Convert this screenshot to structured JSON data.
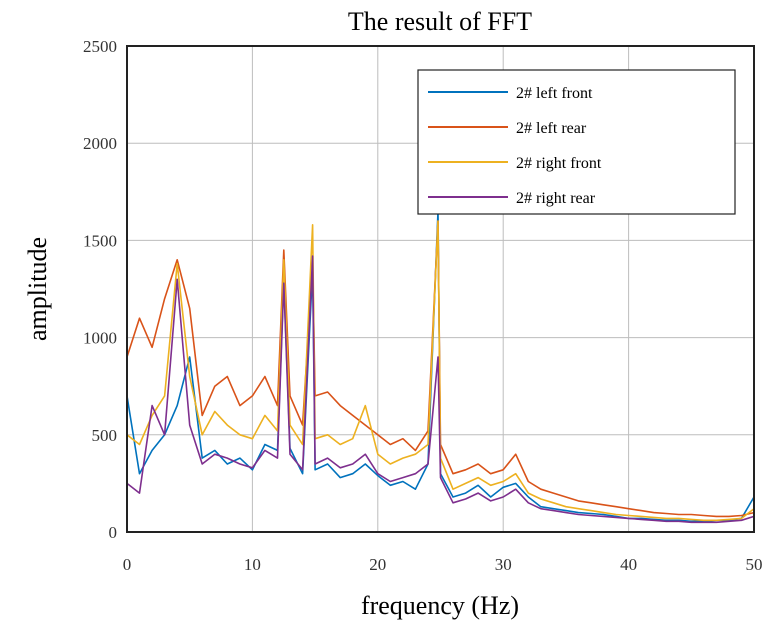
{
  "chart_data": {
    "type": "line",
    "title": "The result of FFT",
    "xlabel": "frequency (Hz)",
    "ylabel": "amplitude",
    "xlim": [
      0,
      50
    ],
    "ylim": [
      0,
      2500
    ],
    "xticks": [
      0,
      10,
      20,
      30,
      40,
      50
    ],
    "yticks": [
      0,
      500,
      1000,
      1500,
      2000,
      2500
    ],
    "grid": true,
    "legend_position": "top-right",
    "series": [
      {
        "name": "2# left front",
        "color": "#0072BD",
        "x": [
          0,
          1,
          2,
          3,
          4,
          5,
          6,
          7,
          8,
          9,
          10,
          11,
          12,
          12.5,
          13,
          14,
          14.8,
          15,
          16,
          17,
          18,
          19,
          20,
          21,
          22,
          23,
          24,
          24.8,
          25,
          26,
          27,
          28,
          29,
          30,
          31,
          32,
          33,
          34,
          35,
          36,
          37,
          38,
          39,
          40,
          41,
          42,
          43,
          44,
          45,
          46,
          47,
          48,
          49,
          50
        ],
        "values": [
          700,
          300,
          420,
          500,
          650,
          900,
          380,
          420,
          350,
          380,
          320,
          450,
          420,
          1300,
          430,
          300,
          1350,
          320,
          350,
          280,
          300,
          350,
          290,
          240,
          260,
          220,
          350,
          1650,
          300,
          180,
          200,
          240,
          180,
          230,
          250,
          180,
          130,
          120,
          110,
          100,
          95,
          90,
          80,
          70,
          70,
          65,
          60,
          60,
          55,
          55,
          60,
          60,
          70,
          180
        ]
      },
      {
        "name": "2# left rear",
        "color": "#D95319",
        "x": [
          0,
          1,
          2,
          3,
          4,
          5,
          6,
          7,
          8,
          9,
          10,
          11,
          12,
          12.5,
          13,
          14,
          14.8,
          15,
          16,
          17,
          18,
          19,
          20,
          21,
          22,
          23,
          24,
          24.8,
          25,
          26,
          27,
          28,
          29,
          30,
          31,
          32,
          33,
          34,
          35,
          36,
          37,
          38,
          39,
          40,
          41,
          42,
          43,
          44,
          45,
          46,
          47,
          48,
          49,
          50
        ],
        "values": [
          900,
          1100,
          950,
          1200,
          1400,
          1150,
          600,
          750,
          800,
          650,
          700,
          800,
          650,
          1450,
          700,
          550,
          1380,
          700,
          720,
          650,
          600,
          550,
          500,
          450,
          480,
          420,
          520,
          1600,
          450,
          300,
          320,
          350,
          300,
          320,
          400,
          260,
          220,
          200,
          180,
          160,
          150,
          140,
          130,
          120,
          110,
          100,
          95,
          90,
          90,
          85,
          80,
          80,
          85,
          100
        ]
      },
      {
        "name": "2# right front",
        "color": "#EDB120",
        "x": [
          0,
          1,
          2,
          3,
          4,
          5,
          6,
          7,
          8,
          9,
          10,
          11,
          12,
          12.5,
          13,
          14,
          14.8,
          15,
          16,
          17,
          18,
          19,
          20,
          21,
          22,
          23,
          24,
          24.8,
          25,
          26,
          27,
          28,
          29,
          30,
          31,
          32,
          33,
          34,
          35,
          36,
          37,
          38,
          39,
          40,
          41,
          42,
          43,
          44,
          45,
          46,
          47,
          48,
          49,
          50
        ],
        "values": [
          500,
          450,
          600,
          700,
          1380,
          800,
          500,
          620,
          550,
          500,
          480,
          600,
          520,
          1400,
          550,
          450,
          1580,
          480,
          500,
          450,
          480,
          650,
          400,
          350,
          380,
          400,
          450,
          1600,
          380,
          220,
          250,
          280,
          240,
          260,
          300,
          200,
          170,
          150,
          130,
          120,
          110,
          100,
          90,
          85,
          80,
          75,
          70,
          70,
          65,
          60,
          60,
          65,
          70,
          120
        ]
      },
      {
        "name": "2# right rear",
        "color": "#7E2F8E",
        "x": [
          0,
          1,
          2,
          3,
          4,
          5,
          6,
          7,
          8,
          9,
          10,
          11,
          12,
          12.5,
          13,
          14,
          14.8,
          15,
          16,
          17,
          18,
          19,
          20,
          21,
          22,
          23,
          24,
          24.8,
          25,
          26,
          27,
          28,
          29,
          30,
          31,
          32,
          33,
          34,
          35,
          36,
          37,
          38,
          39,
          40,
          41,
          42,
          43,
          44,
          45,
          46,
          47,
          48,
          49,
          50
        ],
        "values": [
          250,
          200,
          650,
          500,
          1300,
          550,
          350,
          400,
          380,
          350,
          330,
          420,
          380,
          1280,
          400,
          320,
          1420,
          350,
          380,
          330,
          350,
          400,
          300,
          260,
          280,
          300,
          350,
          900,
          280,
          150,
          170,
          200,
          160,
          180,
          220,
          150,
          120,
          110,
          100,
          90,
          85,
          80,
          75,
          70,
          65,
          60,
          55,
          55,
          50,
          50,
          50,
          55,
          60,
          80
        ]
      }
    ]
  }
}
